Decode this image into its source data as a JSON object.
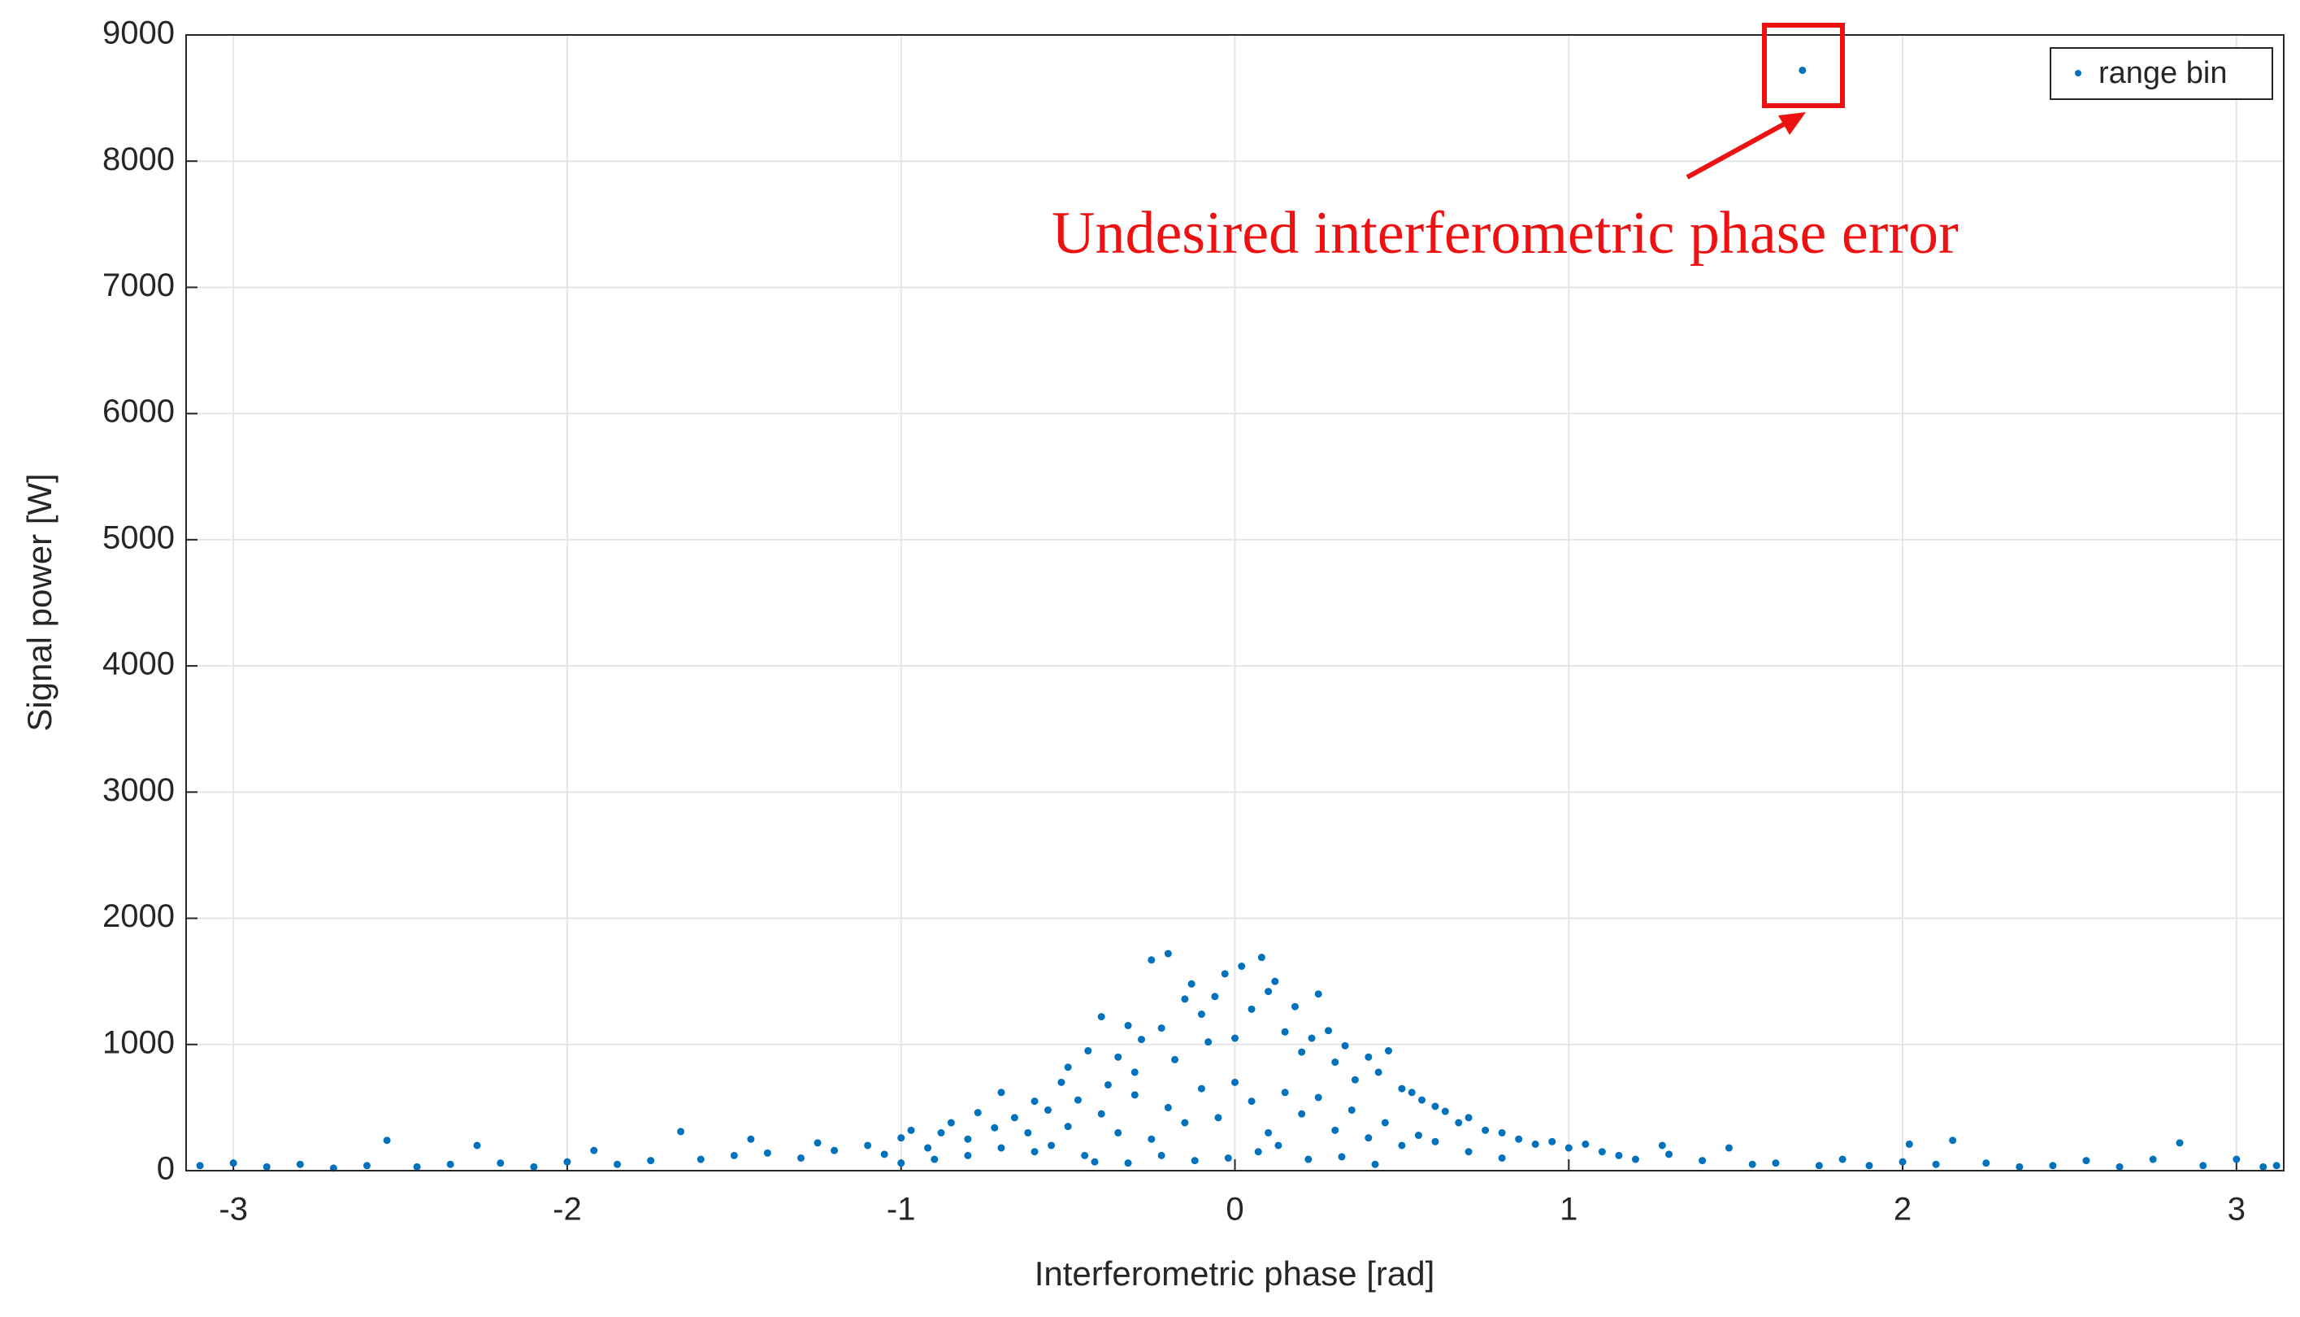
{
  "chart_data": {
    "type": "scatter",
    "x_label": "Interferometric phase [rad]",
    "y_label": "Signal power [W]",
    "annotation": "Undesired interferometric phase error",
    "xlim": [
      -3.1416,
      3.1416
    ],
    "xticks": [
      -3,
      -2,
      -1,
      0,
      1,
      2,
      3
    ],
    "ylim": [
      0,
      9000
    ],
    "yticks": [
      0,
      1000,
      2000,
      3000,
      4000,
      5000,
      6000,
      7000,
      8000,
      9000
    ],
    "grid": true,
    "legend": "upper right",
    "x": [
      -3.1,
      -3.0,
      -2.9,
      -2.8,
      -2.7,
      -2.6,
      -2.54,
      -2.45,
      -2.35,
      -2.27,
      -2.2,
      -2.1,
      -2.0,
      -1.92,
      -1.85,
      -1.75,
      -1.66,
      -1.6,
      -1.5,
      -1.45,
      -1.4,
      -1.3,
      -1.25,
      -1.2,
      -1.1,
      -1.05,
      -1.0,
      -0.97,
      -0.92,
      -0.88,
      -0.85,
      -0.8,
      -0.77,
      -0.72,
      -0.7,
      -0.66,
      -0.62,
      -0.6,
      -0.56,
      -0.52,
      -0.5,
      -0.47,
      -0.44,
      -0.4,
      -0.38,
      -0.35,
      -0.32,
      -0.3,
      -0.28,
      -0.25,
      -0.22,
      -0.2,
      -0.18,
      -0.15,
      -0.13,
      -0.1,
      -0.08,
      -0.06,
      -0.03,
      0,
      0.02,
      0.05,
      0.08,
      0.1,
      0.12,
      0.15,
      0.18,
      0.2,
      0.23,
      0.25,
      0.28,
      0.3,
      0.33,
      0.36,
      0.4,
      0.43,
      0.46,
      0.5,
      0.53,
      0.56,
      0.6,
      0.63,
      0.67,
      0.7,
      0.75,
      0.8,
      0.85,
      0.9,
      0.95,
      1.0,
      1.05,
      1.1,
      1.15,
      1.2,
      1.28,
      1.3,
      1.4,
      1.48,
      1.55,
      1.62,
      1.7,
      1.75,
      1.82,
      1.9,
      2.0,
      2.02,
      2.1,
      2.15,
      2.25,
      2.35,
      2.45,
      2.55,
      2.65,
      2.75,
      2.83,
      2.9,
      3.0,
      3.08,
      3.12,
      -0.6,
      -0.55,
      -0.5,
      -0.45,
      -0.4,
      -0.35,
      -0.3,
      -0.25,
      -0.2,
      -0.15,
      -0.1,
      -0.05,
      0,
      0.05,
      0.1,
      0.15,
      0.2,
      0.25,
      0.3,
      0.35,
      0.4,
      0.45,
      0.5,
      0.55,
      -0.7,
      -0.8,
      -0.9,
      0.6,
      0.7,
      0.8,
      -1.0,
      -0.02,
      0.07,
      -0.12,
      0.13,
      -0.22,
      0.22,
      -0.32,
      0.32,
      -0.42,
      0.42
    ],
    "series": [
      {
        "name": "range bin",
        "color": "#0072bd",
        "values": [
          40,
          60,
          30,
          50,
          20,
          40,
          240,
          30,
          50,
          200,
          60,
          30,
          70,
          160,
          50,
          80,
          310,
          90,
          120,
          250,
          140,
          100,
          220,
          160,
          200,
          130,
          260,
          320,
          180,
          300,
          380,
          250,
          460,
          340,
          620,
          420,
          300,
          550,
          480,
          700,
          820,
          560,
          950,
          1220,
          680,
          900,
          1150,
          780,
          1040,
          1670,
          1130,
          1720,
          880,
          1360,
          1480,
          1240,
          1020,
          1380,
          1560,
          1050,
          1620,
          1280,
          1690,
          1420,
          1500,
          1100,
          1300,
          940,
          1050,
          1400,
          1110,
          860,
          990,
          720,
          900,
          780,
          950,
          650,
          620,
          560,
          510,
          470,
          380,
          420,
          320,
          300,
          250,
          210,
          230,
          180,
          210,
          150,
          120,
          90,
          200,
          130,
          80,
          180,
          50,
          60,
          8720,
          40,
          90,
          40,
          70,
          210,
          50,
          240,
          60,
          30,
          40,
          80,
          30,
          90,
          220,
          40,
          90,
          30,
          40,
          150,
          200,
          350,
          120,
          450,
          300,
          600,
          250,
          500,
          380,
          650,
          420,
          700,
          550,
          300,
          620,
          450,
          580,
          320,
          480,
          260,
          380,
          200,
          280,
          180,
          120,
          90,
          230,
          150,
          100,
          60,
          100,
          150,
          80,
          200,
          120,
          90,
          60,
          110,
          70,
          50
        ]
      }
    ]
  }
}
